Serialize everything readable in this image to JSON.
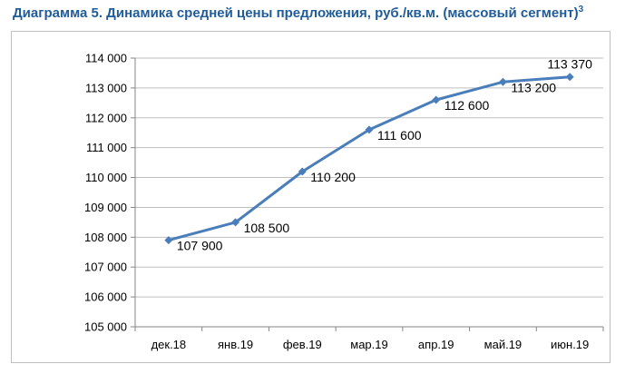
{
  "title": {
    "main": "Диаграмма 5. Динамика средней цены предложения, руб./кв.м. (массовый сегмент)",
    "footnote": "3"
  },
  "colors": {
    "title": "#1f5c99",
    "series": "#4a7ebb",
    "grid": "#bfbfbf",
    "axis": "#868686"
  },
  "chart_data": {
    "type": "line",
    "categories": [
      "дек.18",
      "янв.19",
      "фев.19",
      "мар.19",
      "апр.19",
      "май.19",
      "июн.19"
    ],
    "series": [
      {
        "values": [
          107900,
          108500,
          110200,
          111600,
          112600,
          113200,
          113370
        ],
        "labels": [
          "107 900",
          "108 500",
          "110 200",
          "111 600",
          "112 600",
          "113 200",
          "113 370"
        ]
      }
    ],
    "ylim": [
      105000,
      114000
    ],
    "yticks": [
      105000,
      106000,
      107000,
      108000,
      109000,
      110000,
      111000,
      112000,
      113000,
      114000
    ],
    "ytick_labels": [
      "105 000",
      "106 000",
      "107 000",
      "108 000",
      "109 000",
      "110 000",
      "111 000",
      "112 000",
      "113 000",
      "114 000"
    ],
    "grid": "horizontal",
    "legend": "none",
    "marker": "diamond"
  }
}
